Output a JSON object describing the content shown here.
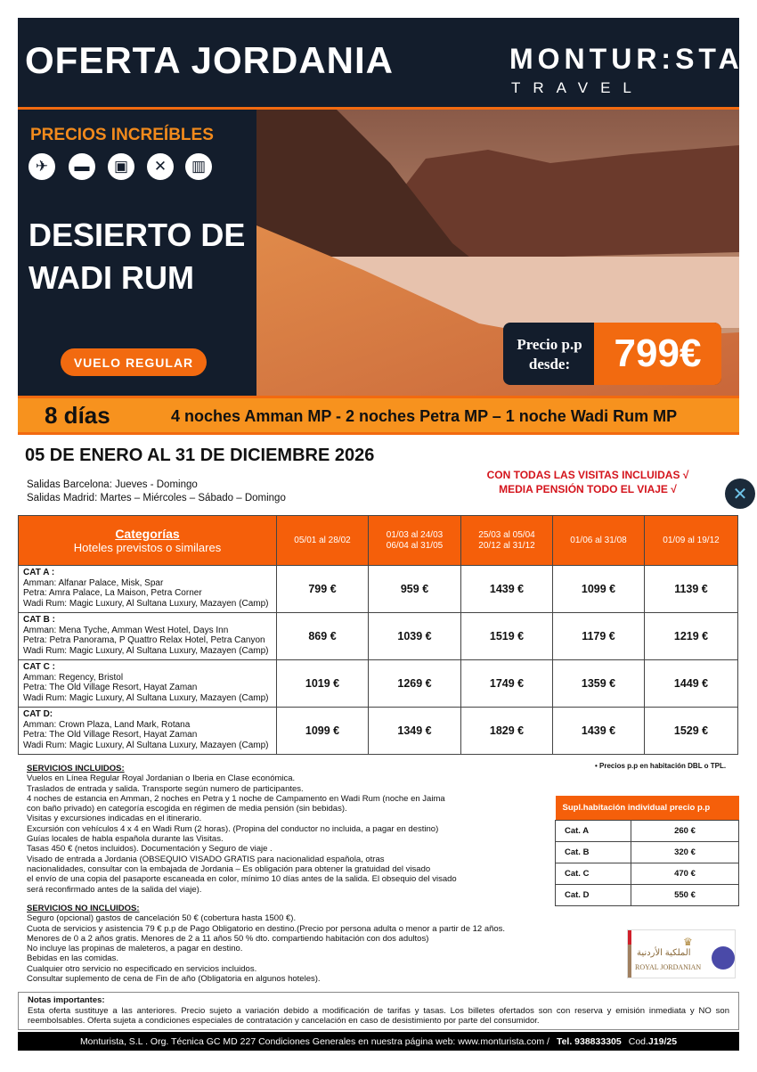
{
  "header": {
    "title": "OFERTA JORDANIA",
    "logo_main": "MONTUR:STA",
    "logo_sub": "TRAVEL"
  },
  "hero": {
    "tagline": "PRECIOS INCREÍBLES",
    "icons": [
      "plane-icon",
      "bed-icon",
      "bus-icon",
      "cutlery-icon",
      "luggage-icon"
    ],
    "destination_line1": "DESIERTO DE",
    "destination_line2": "WADI RUM",
    "flight_badge": "VUELO REGULAR",
    "price_label_1": "Precio p.p",
    "price_label_2": "desde:",
    "price": "799€"
  },
  "band": {
    "days": "8 días",
    "nights": "4 noches Amman MP - 2 noches Petra MP – 1 noche Wadi Rum MP"
  },
  "dates": "05 DE ENERO AL 31 DE DICIEMBRE 2026",
  "departures": [
    "Salidas Barcelona: Jueves - Domingo",
    "Salidas Madrid: Martes – Miércoles – Sábado – Domingo"
  ],
  "highlights": [
    "CON TODAS LAS VISITAS INCLUIDAS √",
    "MEDIA PENSIÓN TODO EL VIAJE √"
  ],
  "table": {
    "head_title": "Categorías",
    "head_sub": "Hoteles previstos o similares",
    "periods": [
      [
        "05/01 al 28/02"
      ],
      [
        "01/03 al 24/03",
        "06/04 al 31/05"
      ],
      [
        "25/03 al 05/04",
        "20/12 al 31/12"
      ],
      [
        "01/06 al 31/08"
      ],
      [
        "01/09 al 19/12"
      ]
    ],
    "rows": [
      {
        "cat": "CAT A :",
        "lines": [
          "Amman: Alfanar Palace, Misk, Spar",
          "Petra:  Amra Palace, La Maison, Petra Corner",
          "Wadi Rum: Magic Luxury, Al Sultana Luxury, Mazayen (Camp)"
        ],
        "prices": [
          "799 €",
          "959 €",
          "1439 €",
          "1099 €",
          "1139 €"
        ]
      },
      {
        "cat": "CAT B :",
        "lines": [
          "Amman: Mena Tyche, Amman West Hotel, Days Inn",
          "Petra: Petra Panorama, P Quattro Relax Hotel, Petra Canyon",
          "Wadi Rum: Magic Luxury, Al Sultana Luxury, Mazayen (Camp)"
        ],
        "prices": [
          "869 €",
          "1039 €",
          "1519 €",
          "1179 €",
          "1219 €"
        ]
      },
      {
        "cat": "CAT C :",
        "lines": [
          "Amman: Regency, Bristol",
          "Petra: The Old Village Resort, Hayat Zaman",
          "Wadi Rum: Magic Luxury, Al Sultana Luxury, Mazayen (Camp)"
        ],
        "prices": [
          "1019 €",
          "1269 €",
          "1749 €",
          "1359 €",
          "1449 €"
        ]
      },
      {
        "cat": "CAT D:",
        "lines": [
          "Amman: Crown Plaza, Land Mark, Rotana",
          "Petra: The Old Village Resort, Hayat Zaman",
          "Wadi Rum: Magic Luxury, Al Sultana Luxury, Mazayen (Camp)"
        ],
        "prices": [
          "1099 €",
          "1349 €",
          "1829 €",
          "1439 €",
          "1529 €"
        ]
      }
    ]
  },
  "price_note": "• Precios p.p en habitación DBL o TPL.",
  "included": {
    "title": "SERVICIOS INCLUIDOS:",
    "lines": [
      "Vuelos en Línea Regular Royal Jordanian o Iberia en Clase económica.",
      "Traslados de entrada y salida. Transporte según numero de participantes.",
      "4 noches de estancia en Amman, 2 noches en Petra y 1 noche de Campamento en Wadi Rum (noche en Jaima",
      "con baño privado) en categoría escogida en régimen de media pensión (sin bebidas).",
      "Visitas y excursiones indicadas en el itinerario.",
      "Excursión con vehículos 4 x 4 en Wadi Rum (2 horas). (Propina del conductor no incluida, a pagar en destino)",
      "Guías locales de habla española durante las Visitas.",
      "Tasas 450 € (netos incluidos). Documentación  y Seguro de viaje .",
      "Visado de entrada a Jordania (OBSEQUIO VISADO GRATIS para nacionalidad española, otras",
      "nacionalidades, consultar con la embajada de Jordania  –  Es obligación para obtener la gratuidad del visado",
      "el envío de una copia del pasaporte escaneada en color, mínimo 10 días antes de la salida. El obsequio del visado",
      "será reconfirmado antes de la salida del viaje)."
    ]
  },
  "not_included": {
    "title": "SERVICIOS NO INCLUIDOS:",
    "lines": [
      "Seguro (opcional) gastos de cancelación 50 € (cobertura hasta 1500 €).",
      "Cuota de servicios y asistencia 79 € p.p de Pago Obligatorio en destino.(Precio por persona adulta o menor a partir de 12 años.",
      "Menores de 0 a 2 años gratis. Menores de 2 a 11 años 50 % dto. compartiendo habitación con dos adultos)",
      "No incluye las propinas de maleteros, a pagar en destino.",
      "Bebidas en las comidas.",
      "Cualquier otro servicio no especificado en servicios incluidos.",
      "Consultar suplemento de cena de Fin de año (Obligatoria en algunos hoteles)."
    ]
  },
  "supplement": {
    "title": "Supl.habitación individual precio p.p",
    "rows": [
      [
        "Cat. A",
        "260 €"
      ],
      [
        "Cat. B",
        "320 €"
      ],
      [
        "Cat. C",
        "470 €"
      ],
      [
        "Cat. D",
        "550 €"
      ]
    ]
  },
  "airline_logo": "ROYAL JORDANIAN",
  "notes": {
    "title": "Notas importantes:",
    "text": "Esta oferta sustituye a las anteriores. Precio sujeto a variación debido a modificación de tarifas y tasas. Los billetes ofertados son con reserva y emisión inmediata y NO son reembolsables. Oferta sujeta a condiciones especiales de contratación y cancelación en caso de desistimiento por parte del consumidor."
  },
  "footer": {
    "text": "Monturista, S.L . Org. Técnica GC  MD 227  Condiciones Generales en nuestra página web: www.monturista.com /",
    "tel": "Tel. 938833305",
    "code_label": "Cod.",
    "code": "J19/25"
  },
  "colors": {
    "navy": "#131d2c",
    "orange": "#f26a10",
    "band": "#f7921e",
    "red": "#d4141c"
  }
}
